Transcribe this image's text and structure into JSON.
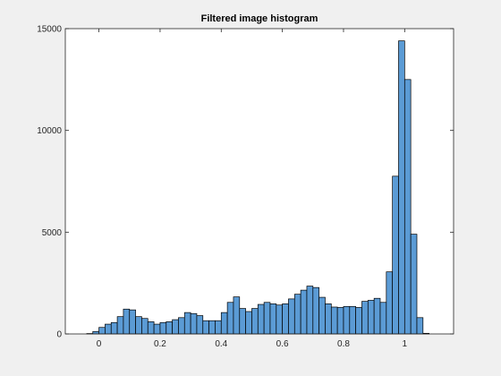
{
  "chart_data": {
    "type": "bar",
    "title": "Filtered image histogram",
    "xlabel": "",
    "ylabel": "",
    "xlim": [
      -0.11,
      1.16
    ],
    "ylim": [
      0,
      15000
    ],
    "grid": false,
    "bin_width": 0.02,
    "bin_start": -0.04,
    "values": [
      20,
      120,
      320,
      480,
      560,
      850,
      1220,
      1180,
      850,
      760,
      600,
      480,
      560,
      600,
      700,
      800,
      1050,
      1000,
      900,
      650,
      650,
      650,
      1050,
      1550,
      1820,
      1250,
      1100,
      1250,
      1450,
      1550,
      1480,
      1420,
      1480,
      1720,
      1950,
      2150,
      2350,
      2280,
      1800,
      1480,
      1320,
      1300,
      1350,
      1350,
      1300,
      1600,
      1650,
      1750,
      1550,
      3050,
      7750,
      14400,
      12500,
      4900,
      800,
      30
    ],
    "xticks": [
      {
        "value": 0,
        "label": "0"
      },
      {
        "value": 0.2,
        "label": "0.2"
      },
      {
        "value": 0.4,
        "label": "0.4"
      },
      {
        "value": 0.6,
        "label": "0.6"
      },
      {
        "value": 0.8,
        "label": "0.8"
      },
      {
        "value": 1,
        "label": "1"
      }
    ],
    "yticks": [
      {
        "value": 0,
        "label": "0"
      },
      {
        "value": 5000,
        "label": "5000"
      },
      {
        "value": 10000,
        "label": "10000"
      },
      {
        "value": 15000,
        "label": "15000"
      }
    ],
    "colors": {
      "bar_fill": "#5b9bd5",
      "bar_edge": "#000000",
      "axes_bg": "#ffffff",
      "figure_bg": "#f0f0f0"
    }
  }
}
